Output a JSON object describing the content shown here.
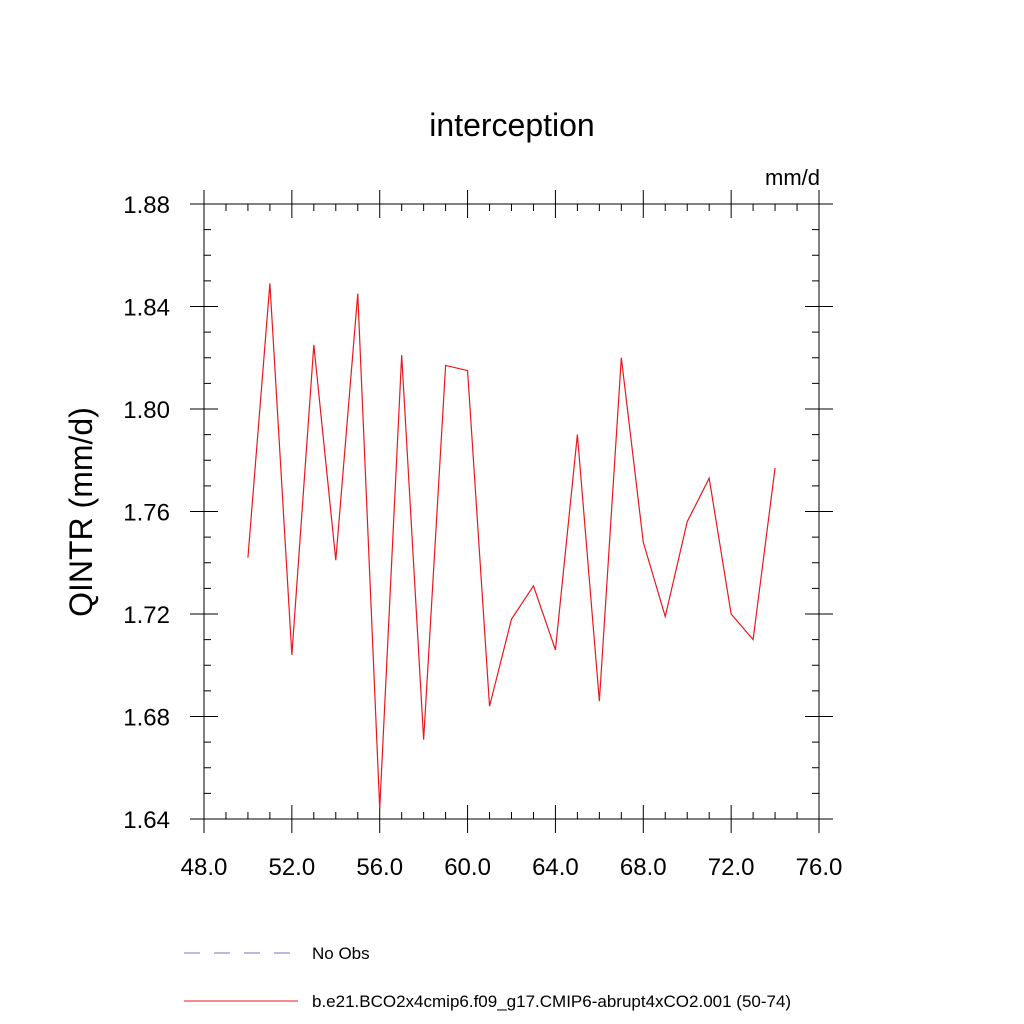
{
  "chart_data": {
    "type": "line",
    "title": "interception",
    "units_label": "mm/d",
    "ylabel": "QINTR  (mm/d)",
    "xlabel": "",
    "xlim": [
      48,
      76
    ],
    "ylim": [
      1.64,
      1.88
    ],
    "x_ticks": [
      48,
      52,
      56,
      60,
      64,
      68,
      72,
      76
    ],
    "x_tick_labels": [
      "48.0",
      "52.0",
      "56.0",
      "60.0",
      "64.0",
      "68.0",
      "72.0",
      "76.0"
    ],
    "y_ticks": [
      1.64,
      1.68,
      1.72,
      1.76,
      1.8,
      1.84,
      1.88
    ],
    "y_tick_labels": [
      "1.64",
      "1.68",
      "1.72",
      "1.76",
      "1.80",
      "1.84",
      "1.88"
    ],
    "grid": false,
    "legend_position": "bottom",
    "series": [
      {
        "name": "No Obs",
        "color": "#7b6fc6",
        "style": "dashed",
        "x": [],
        "y": []
      },
      {
        "name": "b.e21.BCO2x4cmip6.f09_g17.CMIP6-abrupt4xCO2.001 (50-74)",
        "color": "#e8191c",
        "style": "solid",
        "x": [
          50,
          51,
          52,
          53,
          54,
          55,
          56,
          57,
          58,
          59,
          60,
          61,
          62,
          63,
          64,
          65,
          66,
          67,
          68,
          69,
          70,
          71,
          72,
          73,
          74
        ],
        "y": [
          1.742,
          1.849,
          1.704,
          1.825,
          1.741,
          1.845,
          1.644,
          1.821,
          1.671,
          1.817,
          1.815,
          1.684,
          1.718,
          1.731,
          1.706,
          1.79,
          1.686,
          1.82,
          1.748,
          1.719,
          1.756,
          1.773,
          1.72,
          1.71,
          1.777
        ]
      }
    ]
  }
}
